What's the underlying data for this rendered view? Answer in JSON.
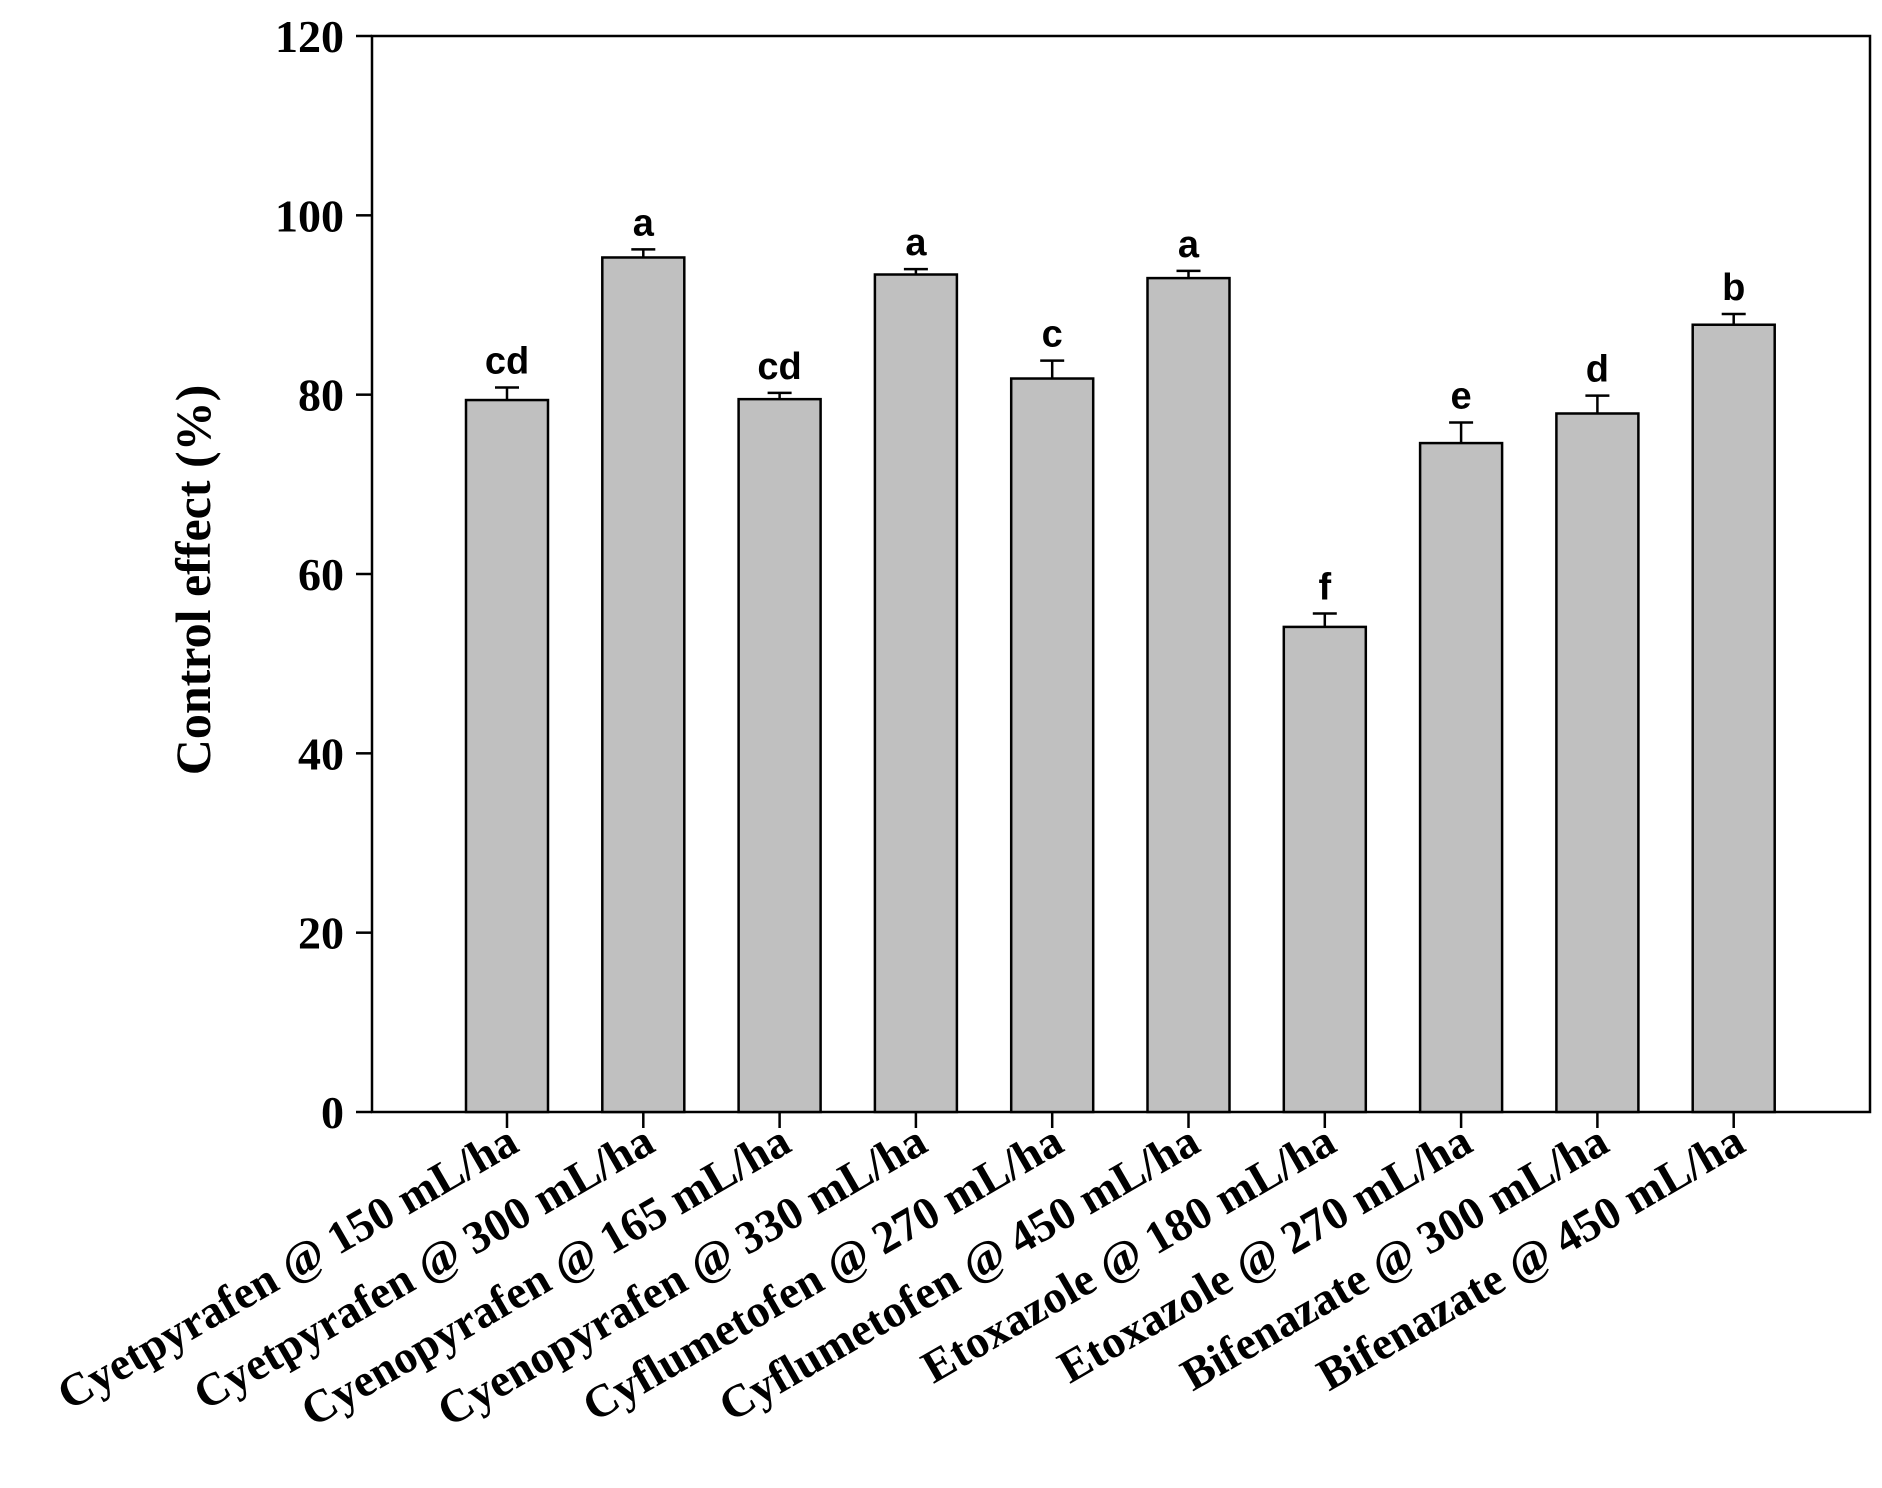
{
  "chart_data": {
    "type": "bar",
    "ylabel": "Control effect (%)",
    "xlabel": "",
    "ylim": [
      0,
      120
    ],
    "yticks": [
      "0",
      "20",
      "40",
      "60",
      "80",
      "100",
      "120"
    ],
    "grid": false,
    "categories": [
      "Cyetpyrafen @ 150 mL/ha",
      "Cyetpyrafen @ 300 mL/ha",
      "Cyenopyrafen @ 165 mL/ha",
      "Cyenopyrafen @ 330 mL/ha",
      "Cyflumetofen @ 270 mL/ha",
      "Cyflumetofen @ 450 mL/ha",
      "Etoxazole @ 180 mL/ha",
      "Etoxazole @ 270 mL/ha",
      "Bifenazate @ 300 mL/ha",
      "Bifenazate @ 450 mL/ha"
    ],
    "values": [
      79.4,
      95.3,
      79.5,
      93.4,
      81.8,
      93.0,
      54.1,
      74.6,
      77.9,
      87.8
    ],
    "errors": [
      1.4,
      0.9,
      0.7,
      0.6,
      2.0,
      0.8,
      1.5,
      2.3,
      2.0,
      1.2
    ],
    "labels": [
      "cd",
      "a",
      "cd",
      "a",
      "c",
      "a",
      "f",
      "e",
      "d",
      "b"
    ],
    "bar_color": "#c0c0c0",
    "edge_color": "#000000"
  }
}
